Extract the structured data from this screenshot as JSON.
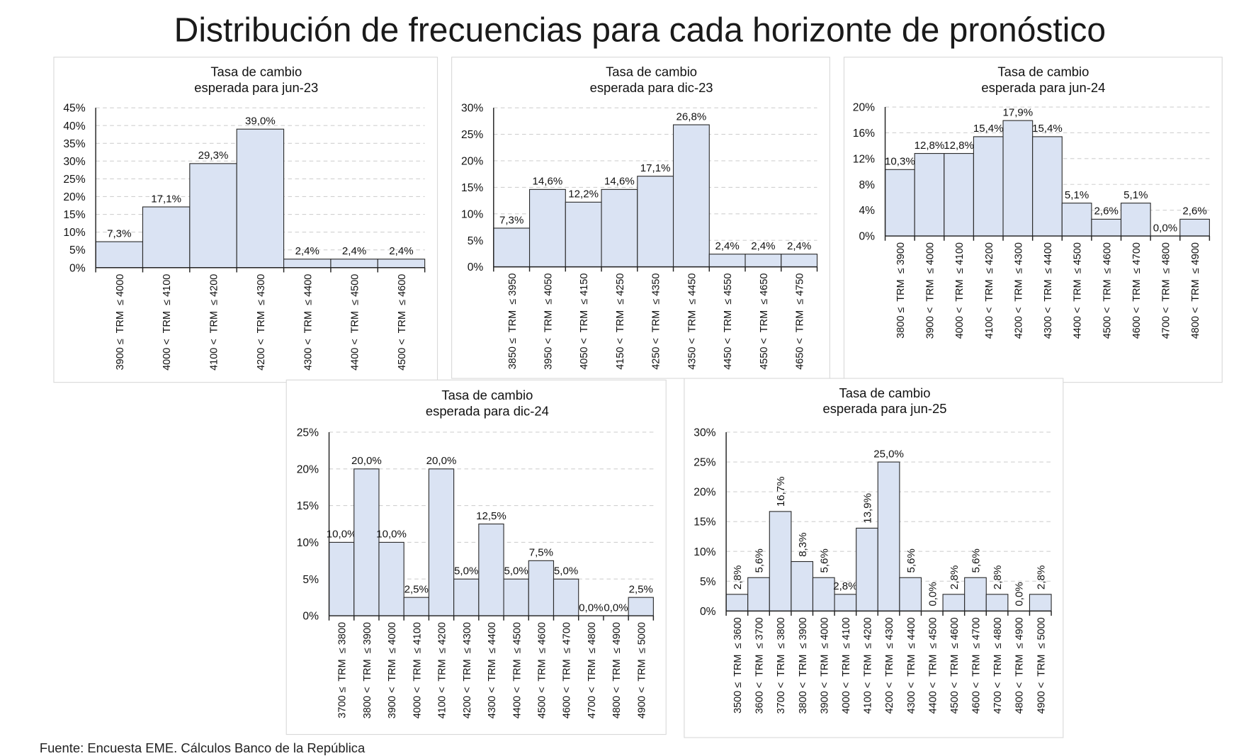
{
  "title": "Distribución de frecuencias para cada horizonte de pronóstico",
  "footer": "Fuente: Encuesta EME. Cálculos Banco de la República",
  "colors": {
    "bar_fill": "#dae3f3",
    "bar_stroke": "#2b2b2b",
    "grid": "#d0d0d0"
  },
  "chart_data": [
    {
      "type": "bar",
      "title": [
        "Tasa de cambio",
        "esperada para jun-23"
      ],
      "ylim": [
        0,
        45
      ],
      "ytick_step": 5,
      "grid": true,
      "yticks": [
        "0%",
        "5%",
        "10%",
        "15%",
        "20%",
        "25%",
        "30%",
        "35%",
        "40%",
        "45%"
      ],
      "categories": [
        "3900 ≤  TRM  ≤ 4000",
        "4000 <  TRM  ≤ 4100",
        "4100 <  TRM  ≤ 4200",
        "4200 <  TRM  ≤ 4300",
        "4300 <  TRM  ≤ 4400",
        "4400 <  TRM  ≤ 4500",
        "4500 <  TRM  ≤ 4600"
      ],
      "values": [
        7.3,
        17.1,
        29.3,
        39.0,
        2.4,
        2.4,
        2.4
      ],
      "labels": [
        "7,3%",
        "17,1%",
        "29,3%",
        "39,0%",
        "2,4%",
        "2,4%",
        "2,4%"
      ]
    },
    {
      "type": "bar",
      "title": [
        "Tasa de cambio",
        "esperada para dic-23"
      ],
      "ylim": [
        0,
        30
      ],
      "ytick_step": 5,
      "grid": true,
      "yticks": [
        "0%",
        "5%",
        "10%",
        "15%",
        "20%",
        "25%",
        "30%"
      ],
      "categories": [
        "3850 ≤  TRM  ≤ 3950",
        "3950 <  TRM  ≤ 4050",
        "4050 <  TRM  ≤ 4150",
        "4150 <  TRM  ≤ 4250",
        "4250 <  TRM  ≤ 4350",
        "4350 <  TRM  ≤ 4450",
        "4450 <  TRM  ≤ 4550",
        "4550 <  TRM  ≤ 4650",
        "4650 <  TRM  ≤ 4750"
      ],
      "values": [
        7.3,
        14.6,
        12.2,
        14.6,
        17.1,
        26.8,
        2.4,
        2.4,
        2.4
      ],
      "labels": [
        "7,3%",
        "14,6%",
        "12,2%",
        "14,6%",
        "17,1%",
        "26,8%",
        "2,4%",
        "2,4%",
        "2,4%"
      ]
    },
    {
      "type": "bar",
      "title": [
        "Tasa de cambio",
        "esperada para jun-24"
      ],
      "ylim": [
        0,
        20
      ],
      "ytick_step": 4,
      "grid": true,
      "yticks": [
        "0%",
        "4%",
        "8%",
        "12%",
        "16%",
        "20%"
      ],
      "categories": [
        "3800 ≤  TRM  ≤ 3900",
        "3900 <  TRM  ≤ 4000",
        "4000 <  TRM  ≤ 4100",
        "4100 <  TRM  ≤ 4200",
        "4200 <  TRM  ≤ 4300",
        "4300 <  TRM  ≤ 4400",
        "4400 <  TRM  ≤ 4500",
        "4500 <  TRM  ≤ 4600",
        "4600 <  TRM  ≤ 4700",
        "4700 <  TRM  ≤ 4800",
        "4800 <  TRM  ≤ 4900"
      ],
      "values": [
        10.3,
        12.8,
        12.8,
        15.4,
        17.9,
        15.4,
        5.1,
        2.6,
        5.1,
        0.0,
        2.6
      ],
      "labels": [
        "10,3%",
        "12,8%",
        "12,8%",
        "15,4%",
        "17,9%",
        "15,4%",
        "5,1%",
        "2,6%",
        "5,1%",
        "0,0%",
        "2,6%"
      ]
    },
    {
      "type": "bar",
      "title": [
        "Tasa de cambio",
        "esperada para dic-24"
      ],
      "ylim": [
        0,
        25
      ],
      "ytick_step": 5,
      "grid": true,
      "yticks": [
        "0%",
        "5%",
        "10%",
        "15%",
        "20%",
        "25%"
      ],
      "categories": [
        "3700 ≤  TRM  ≤ 3800",
        "3800 <  TRM  ≤ 3900",
        "3900 <  TRM  ≤ 4000",
        "4000 <  TRM  ≤ 4100",
        "4100 <  TRM  ≤ 4200",
        "4200 <  TRM  ≤ 4300",
        "4300 <  TRM  ≤ 4400",
        "4400 <  TRM  ≤ 4500",
        "4500 <  TRM  ≤ 4600",
        "4600 <  TRM  ≤ 4700",
        "4700 <  TRM  ≤ 4800",
        "4800 <  TRM  ≤ 4900",
        "4900 <  TRM  ≤ 5000"
      ],
      "values": [
        10.0,
        20.0,
        10.0,
        2.5,
        20.0,
        5.0,
        12.5,
        5.0,
        7.5,
        5.0,
        0.0,
        0.0,
        2.5
      ],
      "labels": [
        "10,0%",
        "20,0%",
        "10,0%",
        "2,5%",
        "20,0%",
        "5,0%",
        "12,5%",
        "5,0%",
        "7,5%",
        "5,0%",
        "0,0%",
        "0,0%",
        "2,5%"
      ]
    },
    {
      "type": "bar",
      "title": [
        "Tasa de cambio",
        "esperada para jun-25"
      ],
      "ylim": [
        0,
        30
      ],
      "ytick_step": 5,
      "grid": true,
      "yticks": [
        "0%",
        "5%",
        "10%",
        "15%",
        "20%",
        "25%",
        "30%"
      ],
      "categories": [
        "3500 ≤  TRM  ≤ 3600",
        "3600 <  TRM  ≤ 3700",
        "3700 <  TRM  ≤ 3800",
        "3800 <  TRM  ≤ 3900",
        "3900 <  TRM  ≤ 4000",
        "4000 <  TRM  ≤ 4100",
        "4100 <  TRM  ≤ 4200",
        "4200 <  TRM  ≤ 4300",
        "4300 <  TRM  ≤ 4400",
        "4400 <  TRM  ≤ 4500",
        "4500 <  TRM  ≤ 4600",
        "4600 <  TRM  ≤ 4700",
        "4700 <  TRM  ≤ 4800",
        "4800 <  TRM  ≤ 4900",
        "4900 <  TRM  ≤ 5000"
      ],
      "values": [
        2.8,
        5.6,
        16.7,
        8.3,
        5.6,
        2.8,
        13.9,
        25.0,
        5.6,
        0.0,
        2.8,
        5.6,
        2.8,
        0.0,
        2.8
      ],
      "labels": [
        "2,8%",
        "5,6%",
        "16,7%",
        "8,3%",
        "5,6%",
        "2,8%",
        "13,9%",
        "25,0%",
        "5,6%",
        "0,0%",
        "2,8%",
        "5,6%",
        "2,8%",
        "0,0%",
        "2,8%"
      ]
    }
  ]
}
